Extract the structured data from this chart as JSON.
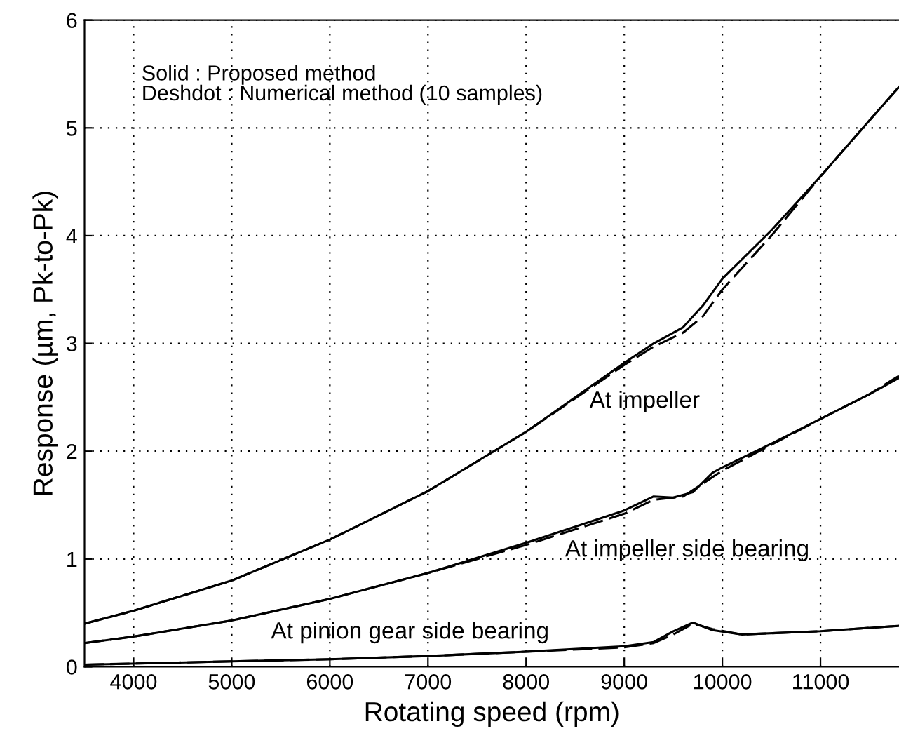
{
  "chart_data": {
    "type": "line",
    "xlabel": "Rotating speed (rpm)",
    "ylabel": "Response (µm, Pk-to-Pk)",
    "xlim": [
      3500,
      11800
    ],
    "xticks": [
      4000,
      5000,
      6000,
      7000,
      8000,
      9000,
      10000,
      11000
    ],
    "ylim": [
      0,
      6
    ],
    "yticks": [
      0,
      1,
      2,
      3,
      4,
      5,
      6
    ],
    "grid": true,
    "legend": false,
    "marker": "none",
    "series": [
      {
        "color": "#000000",
        "line_style": "solid",
        "x": [
          3500,
          4000,
          5000,
          6000,
          7000,
          8000,
          9000,
          9300,
          9600,
          9800,
          10000,
          10500,
          11000,
          11500,
          11800
        ],
        "values": [
          0.4,
          0.52,
          0.8,
          1.18,
          1.63,
          2.18,
          2.82,
          3.0,
          3.15,
          3.35,
          3.6,
          4.05,
          4.55,
          5.07,
          5.38
        ]
      },
      {
        "color": "#000000",
        "line_style": "dashed",
        "x": [
          3500,
          4000,
          5000,
          6000,
          7000,
          8000,
          9000,
          9300,
          9600,
          9800,
          10000,
          10500,
          11000,
          11500,
          11800
        ],
        "values": [
          0.4,
          0.52,
          0.8,
          1.18,
          1.63,
          2.18,
          2.8,
          2.97,
          3.1,
          3.25,
          3.5,
          4.0,
          4.55,
          5.07,
          5.38
        ]
      },
      {
        "color": "#000000",
        "line_style": "solid",
        "x": [
          3500,
          4000,
          5000,
          6000,
          7000,
          8000,
          9000,
          9300,
          9500,
          9700,
          9900,
          10000,
          10500,
          11000,
          11500,
          11800
        ],
        "values": [
          0.22,
          0.28,
          0.43,
          0.63,
          0.87,
          1.15,
          1.45,
          1.58,
          1.57,
          1.62,
          1.8,
          1.85,
          2.07,
          2.3,
          2.53,
          2.68
        ]
      },
      {
        "color": "#000000",
        "line_style": "dashed",
        "x": [
          3500,
          4000,
          5000,
          6000,
          7000,
          8000,
          9000,
          9300,
          9600,
          9800,
          10000,
          10500,
          11000,
          11500,
          11800
        ],
        "values": [
          0.22,
          0.28,
          0.43,
          0.63,
          0.87,
          1.13,
          1.42,
          1.55,
          1.58,
          1.7,
          1.82,
          2.06,
          2.3,
          2.53,
          2.7
        ]
      },
      {
        "color": "#000000",
        "line_style": "solid",
        "x": [
          3500,
          5000,
          6000,
          7000,
          8000,
          9000,
          9300,
          9500,
          9700,
          9900,
          10200,
          11000,
          11800
        ],
        "values": [
          0.02,
          0.05,
          0.07,
          0.1,
          0.14,
          0.19,
          0.23,
          0.33,
          0.41,
          0.34,
          0.3,
          0.33,
          0.38
        ]
      },
      {
        "color": "#000000",
        "line_style": "dashed",
        "x": [
          3500,
          5000,
          6000,
          7000,
          8000,
          9000,
          9300,
          9500,
          9700,
          9900,
          10200,
          11000,
          11800
        ],
        "values": [
          0.02,
          0.05,
          0.07,
          0.1,
          0.14,
          0.18,
          0.22,
          0.3,
          0.4,
          0.35,
          0.3,
          0.33,
          0.38
        ]
      }
    ],
    "annotations": [
      "Solid : Proposed method\nDeshdot : Numerical method (10 samples)",
      "At impeller",
      "At impeller side bearing",
      "At pinion gear side bearing"
    ]
  }
}
